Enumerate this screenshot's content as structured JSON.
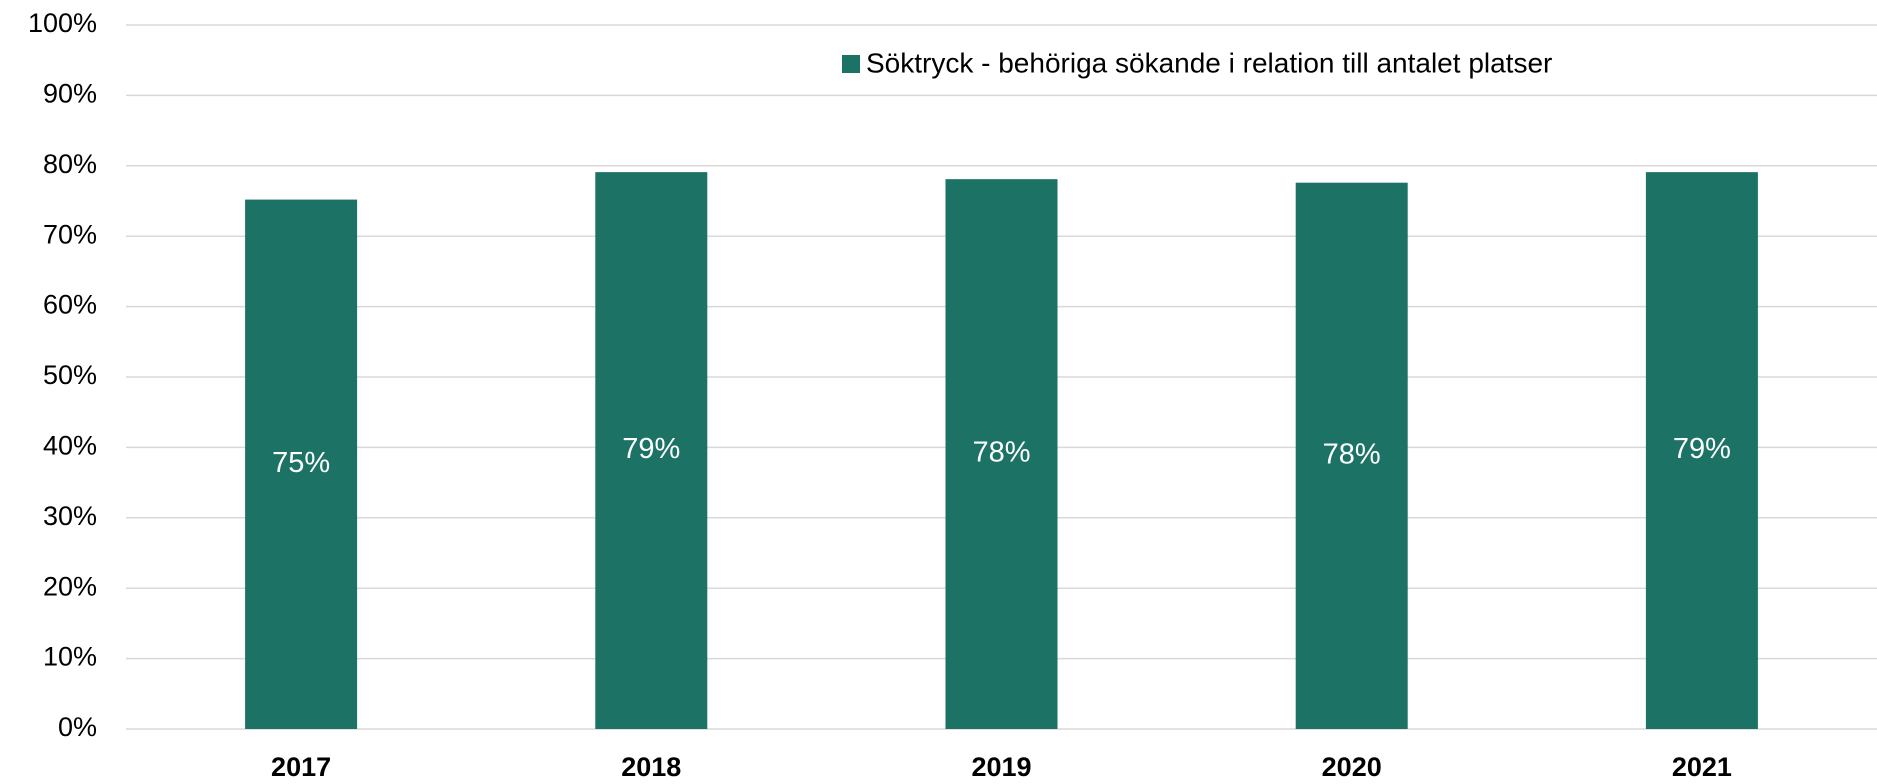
{
  "chart_data": {
    "type": "bar",
    "categories": [
      "2017",
      "2018",
      "2019",
      "2020",
      "2021"
    ],
    "series": [
      {
        "name": "Söktryck - behöriga sökande i relation till antalet platser",
        "color": "#1b7265",
        "values": [
          75.2,
          79.1,
          78.1,
          77.6,
          79.1
        ],
        "value_labels": [
          "75%",
          "79%",
          "78%",
          "78%",
          "79%"
        ]
      }
    ],
    "ylim": [
      0,
      100
    ],
    "yticks": [
      {
        "value": 0,
        "label": "0%"
      },
      {
        "value": 10,
        "label": "10%"
      },
      {
        "value": 20,
        "label": "20%"
      },
      {
        "value": 30,
        "label": "30%"
      },
      {
        "value": 40,
        "label": "40%"
      },
      {
        "value": 50,
        "label": "50%"
      },
      {
        "value": 60,
        "label": "60%"
      },
      {
        "value": 70,
        "label": "70%"
      },
      {
        "value": 80,
        "label": "80%"
      },
      {
        "value": 90,
        "label": "90%"
      },
      {
        "value": 100,
        "label": "100%"
      }
    ],
    "grid": true,
    "legend": "top"
  }
}
